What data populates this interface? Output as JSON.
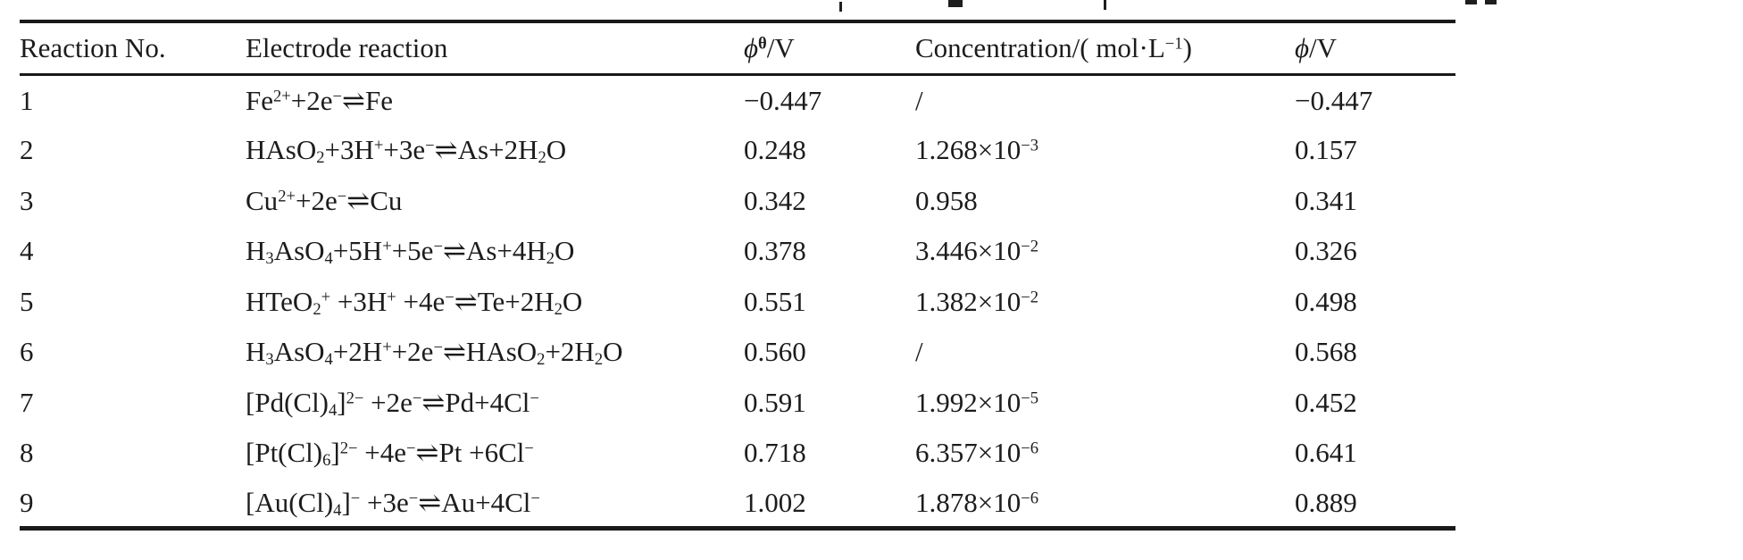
{
  "page": {
    "background": "#ffffff",
    "text_color": "#1c1c1c",
    "rule_color": "#191919"
  },
  "table": {
    "columns": [
      {
        "label_html": "Reaction No."
      },
      {
        "label_html": "Electrode reaction"
      },
      {
        "label_html": "<i>ϕ</i><sup><b>θ</b></sup>/V"
      },
      {
        "label_html": "Concentration/( mol·L<sup>−1</sup>)"
      },
      {
        "label_html": "<i>ϕ</i>/V"
      }
    ],
    "rows": [
      {
        "no": "1",
        "reaction_html": "Fe<sup>2+</sup>+2e<sup>−</sup>⇌Fe",
        "phi_std": "−0.447",
        "conc_html": "/",
        "phi": "−0.447"
      },
      {
        "no": "2",
        "reaction_html": "HAsO<sub>2</sub>+3H<sup>+</sup>+3e<sup>−</sup>⇌As+2H<sub>2</sub>O",
        "phi_std": "0.248",
        "conc_html": "1.268×10<sup>−3</sup>",
        "phi": "0.157"
      },
      {
        "no": "3",
        "reaction_html": "Cu<sup>2+</sup>+2e<sup>−</sup>⇌Cu",
        "phi_std": "0.342",
        "conc_html": "0.958",
        "phi": "0.341"
      },
      {
        "no": "4",
        "reaction_html": "H<sub>3</sub>AsO<sub>4</sub>+5H<sup>+</sup>+5e<sup>−</sup>⇌As+4H<sub>2</sub>O",
        "phi_std": "0.378",
        "conc_html": "3.446×10<sup>−2</sup>",
        "phi": "0.326"
      },
      {
        "no": "5",
        "reaction_html": "HTeO<sub>2</sub><sup>+</sup> +3H<sup>+</sup> +4e<sup>−</sup>⇌Te+2H<sub>2</sub>O",
        "phi_std": "0.551",
        "conc_html": "1.382×10<sup>−2</sup>",
        "phi": "0.498"
      },
      {
        "no": "6",
        "reaction_html": "H<sub>3</sub>AsO<sub>4</sub>+2H<sup>+</sup>+2e<sup>−</sup>⇌HAsO<sub>2</sub>+2H<sub>2</sub>O",
        "phi_std": "0.560",
        "conc_html": "/",
        "phi": "0.568"
      },
      {
        "no": "7",
        "reaction_html": "[Pd(Cl)<sub>4</sub>]<sup>2−</sup> +2e<sup>−</sup>⇌Pd+4Cl<sup>−</sup>",
        "phi_std": "0.591",
        "conc_html": "1.992×10<sup>−5</sup>",
        "phi": "0.452"
      },
      {
        "no": "8",
        "reaction_html": "[Pt(Cl)<sub>6</sub>]<sup>2−</sup> +4e<sup>−</sup>⇌Pt +6Cl<sup>−</sup>",
        "phi_std": "0.718",
        "conc_html": "6.357×10<sup>−6</sup>",
        "phi": "0.641"
      },
      {
        "no": "9",
        "reaction_html": "[Au(Cl)<sub>4</sub>]<sup>−</sup> +3e<sup>−</sup>⇌Au+4Cl<sup>−</sup>",
        "phi_std": "1.002",
        "conc_html": "1.878×10<sup>−6</sup>",
        "phi": "0.889"
      }
    ]
  }
}
